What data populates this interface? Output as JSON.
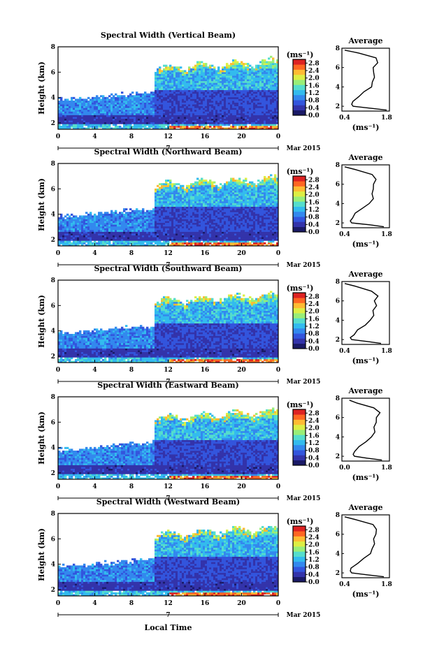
{
  "chart_data": [
    {
      "type": "heatmap",
      "title": "Spectral Width (Vertical Beam)",
      "ylabel": "Height (km)",
      "xlim": [
        0,
        24
      ],
      "ylim": [
        1.5,
        8
      ],
      "x_ticks": [
        "0",
        "4",
        "8",
        "12",
        "16",
        "20",
        "0"
      ],
      "y_ticks": [
        "2",
        "4",
        "6",
        "8"
      ],
      "date_label": "7",
      "month_label": "Mar 2015",
      "colorbar": {
        "unit": "(ms⁻¹)",
        "ticks": [
          "0.0",
          "0.4",
          "0.8",
          "1.2",
          "1.6",
          "2.0",
          "2.4",
          "2.8"
        ],
        "range": [
          0,
          3.0
        ]
      },
      "profile": {
        "title": "Average",
        "xlabel": "(ms⁻¹)",
        "x_ticks": [
          "0.4",
          "1.8"
        ],
        "y_ticks": [
          "2",
          "4",
          "6",
          "8"
        ],
        "xlim": [
          0.2,
          1.9
        ],
        "ylim": [
          1.5,
          8
        ],
        "heights": [
          1.6,
          1.8,
          2.0,
          2.2,
          2.5,
          3.0,
          3.5,
          4.0,
          4.5,
          5.0,
          5.5,
          6.0,
          6.5,
          7.0,
          7.5,
          7.8
        ],
        "values": [
          1.8,
          1.2,
          0.6,
          0.55,
          0.6,
          0.8,
          1.0,
          1.25,
          1.3,
          1.35,
          1.35,
          1.3,
          1.5,
          1.4,
          0.8,
          0.3
        ]
      }
    },
    {
      "type": "heatmap",
      "title": "Spectral Width (Northward Beam)",
      "ylabel": "Height (km)",
      "xlim": [
        0,
        24
      ],
      "ylim": [
        1.5,
        8
      ],
      "x_ticks": [
        "0",
        "4",
        "8",
        "12",
        "16",
        "20",
        "0"
      ],
      "y_ticks": [
        "2",
        "4",
        "6",
        "8"
      ],
      "date_label": "7",
      "month_label": "Mar 2015",
      "colorbar": {
        "unit": "(ms⁻¹)",
        "ticks": [
          "0.0",
          "0.4",
          "0.8",
          "1.2",
          "1.6",
          "2.0",
          "2.4",
          "2.8"
        ],
        "range": [
          0,
          3.0
        ]
      },
      "profile": {
        "title": "Average",
        "xlabel": "(ms⁻¹)",
        "x_ticks": [
          "0.4",
          "1.8"
        ],
        "y_ticks": [
          "2",
          "4",
          "6",
          "8"
        ],
        "xlim": [
          0.2,
          1.9
        ],
        "ylim": [
          1.5,
          8
        ],
        "heights": [
          1.6,
          1.8,
          2.0,
          2.2,
          2.5,
          3.0,
          3.5,
          4.0,
          4.5,
          5.0,
          5.5,
          6.0,
          6.5,
          7.0,
          7.5,
          7.8
        ],
        "values": [
          1.7,
          1.2,
          0.55,
          0.5,
          0.55,
          0.7,
          0.9,
          1.2,
          1.3,
          1.3,
          1.3,
          1.35,
          1.4,
          1.3,
          0.7,
          0.3
        ]
      }
    },
    {
      "type": "heatmap",
      "title": "Spectral Width (Southward Beam)",
      "ylabel": "Height (km)",
      "xlim": [
        0,
        24
      ],
      "ylim": [
        1.5,
        8
      ],
      "x_ticks": [
        "0",
        "4",
        "8",
        "12",
        "16",
        "20",
        "0"
      ],
      "y_ticks": [
        "2",
        "4",
        "6",
        "8"
      ],
      "date_label": "7",
      "month_label": "Mar 2015",
      "colorbar": {
        "unit": "(ms⁻¹)",
        "ticks": [
          "0.0",
          "0.4",
          "0.8",
          "1.2",
          "1.6",
          "2.0",
          "2.4",
          "2.8"
        ],
        "range": [
          0,
          3.0
        ]
      },
      "profile": {
        "title": "Average",
        "xlabel": "(ms⁻¹)",
        "x_ticks": [
          "0.4",
          "1.8"
        ],
        "y_ticks": [
          "2",
          "4",
          "6",
          "8"
        ],
        "xlim": [
          0.2,
          1.9
        ],
        "ylim": [
          1.5,
          8
        ],
        "heights": [
          1.6,
          1.8,
          2.0,
          2.2,
          2.5,
          3.0,
          3.5,
          4.0,
          4.5,
          5.0,
          5.5,
          6.0,
          6.5,
          7.0,
          7.5,
          7.8
        ],
        "values": [
          1.6,
          1.1,
          0.55,
          0.5,
          0.6,
          0.8,
          1.0,
          1.25,
          1.3,
          1.35,
          1.4,
          1.4,
          1.45,
          1.3,
          0.7,
          0.3
        ]
      }
    },
    {
      "type": "heatmap",
      "title": "Spectral Width (Eastward Beam)",
      "ylabel": "Height (km)",
      "xlim": [
        0,
        24
      ],
      "ylim": [
        1.5,
        8
      ],
      "x_ticks": [
        "0",
        "4",
        "8",
        "12",
        "16",
        "20",
        "0"
      ],
      "y_ticks": [
        "2",
        "4",
        "6",
        "8"
      ],
      "date_label": "7",
      "month_label": "Mar 2015",
      "colorbar": {
        "unit": "(ms⁻¹)",
        "ticks": [
          "0.0",
          "0.4",
          "0.8",
          "1.2",
          "1.6",
          "2.0",
          "2.4",
          "2.8"
        ],
        "range": [
          0,
          3.0
        ]
      },
      "profile": {
        "title": "Average",
        "xlabel": "(ms⁻¹)",
        "x_ticks": [
          "0.0",
          "1.8"
        ],
        "y_ticks": [
          "2",
          "4",
          "6",
          "8"
        ],
        "xlim": [
          0.0,
          1.9
        ],
        "ylim": [
          1.5,
          8
        ],
        "heights": [
          1.6,
          1.8,
          2.0,
          2.2,
          2.5,
          3.0,
          3.5,
          4.0,
          4.5,
          5.0,
          5.5,
          6.0,
          6.5,
          7.0,
          7.5,
          7.8
        ],
        "values": [
          1.6,
          1.0,
          0.5,
          0.45,
          0.5,
          0.7,
          0.95,
          1.2,
          1.3,
          1.3,
          1.35,
          1.4,
          1.5,
          1.3,
          0.6,
          0.3
        ]
      }
    },
    {
      "type": "heatmap",
      "title": "Spectral Width (Westward Beam)",
      "ylabel": "Height (km)",
      "xlim": [
        0,
        24
      ],
      "ylim": [
        1.5,
        8
      ],
      "x_ticks": [
        "0",
        "4",
        "8",
        "12",
        "16",
        "20",
        "0"
      ],
      "y_ticks": [
        "2",
        "4",
        "6",
        "8"
      ],
      "date_label": "7",
      "month_label": "Mar 2015",
      "xlabel": "Local Time",
      "colorbar": {
        "unit": "(ms⁻¹)",
        "ticks": [
          "0.0",
          "0.4",
          "0.8",
          "1.2",
          "1.6",
          "2.0",
          "2.4",
          "2.8"
        ],
        "range": [
          0,
          3.0
        ]
      },
      "profile": {
        "title": "Average",
        "xlabel": "(ms⁻¹)",
        "x_ticks": [
          "0.4",
          "1.8"
        ],
        "y_ticks": [
          "2",
          "4",
          "6",
          "8"
        ],
        "xlim": [
          0.2,
          1.9
        ],
        "ylim": [
          1.5,
          8
        ],
        "heights": [
          1.6,
          1.8,
          2.0,
          2.2,
          2.5,
          3.0,
          3.5,
          4.0,
          4.5,
          5.0,
          5.5,
          6.0,
          6.5,
          7.0,
          7.5,
          7.8
        ],
        "values": [
          1.7,
          1.1,
          0.55,
          0.5,
          0.55,
          0.75,
          1.0,
          1.2,
          1.3,
          1.35,
          1.35,
          1.4,
          1.45,
          1.3,
          0.7,
          0.3
        ]
      }
    }
  ],
  "colors": {
    "scale": [
      "#1a1a66",
      "#3333aa",
      "#3355dd",
      "#3388ee",
      "#33bbee",
      "#55ddcc",
      "#99ee77",
      "#ddee44",
      "#ffbb33",
      "#ff6622",
      "#dd2222"
    ],
    "background": "#ffffff",
    "axis": "#000000"
  }
}
